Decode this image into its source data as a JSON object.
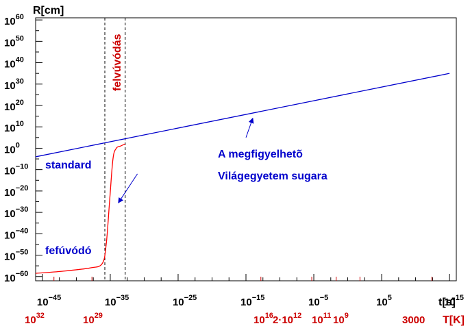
{
  "chart_data": {
    "type": "line",
    "xlabel": "t[s]",
    "ylabel": "R[cm]",
    "secondary_xlabel": "T[K]",
    "x_scale": "log",
    "y_scale": "log",
    "xlim_exp": [
      -46,
      16
    ],
    "ylim_exp": [
      -62,
      61
    ],
    "grid": false,
    "x_ticks": [
      {
        "base": "10",
        "exp": "−45",
        "value_exp": -45
      },
      {
        "base": "10",
        "exp": "−35",
        "value_exp": -35
      },
      {
        "base": "10",
        "exp": "−25",
        "value_exp": -25
      },
      {
        "base": "10",
        "exp": "−15",
        "value_exp": -15
      },
      {
        "base": "10",
        "exp": "−5",
        "value_exp": -5
      },
      {
        "base": "10",
        "exp": "5",
        "value_exp": 5
      },
      {
        "base": "10",
        "exp": "15",
        "value_exp": 15
      }
    ],
    "y_ticks": [
      {
        "base": "10",
        "exp": "−60",
        "value_exp": -60
      },
      {
        "base": "10",
        "exp": "−50",
        "value_exp": -50
      },
      {
        "base": "10",
        "exp": "−40",
        "value_exp": -40
      },
      {
        "base": "10",
        "exp": "−30",
        "value_exp": -30
      },
      {
        "base": "10",
        "exp": "−20",
        "value_exp": -20
      },
      {
        "base": "10",
        "exp": "−10",
        "value_exp": -10
      },
      {
        "base": "10",
        "exp": "0",
        "value_exp": 0
      },
      {
        "base": "10",
        "exp": "10",
        "value_exp": 10
      },
      {
        "base": "10",
        "exp": "20",
        "value_exp": 20
      },
      {
        "base": "10",
        "exp": "30",
        "value_exp": 30
      },
      {
        "base": "10",
        "exp": "40",
        "value_exp": 40
      },
      {
        "base": "10",
        "exp": "50",
        "value_exp": 50
      },
      {
        "base": "10",
        "exp": "60",
        "value_exp": 60
      }
    ],
    "temperature_ticks": [
      {
        "base": "10",
        "exp": "32",
        "t_exp": -43.3,
        "label_x": 36,
        "label_anchor": "start"
      },
      {
        "base": "10",
        "exp": "29",
        "t_exp": -37.7,
        "label_x": 121,
        "label_anchor": "start"
      },
      {
        "base": "10",
        "exp": "16",
        "t_exp": -12.8,
        "label_x": 370,
        "label_anchor": "start"
      },
      {
        "base": "2·10",
        "exp": "12",
        "t_exp": -5.3,
        "label_x": 398,
        "label_anchor": "start"
      },
      {
        "base": "10",
        "exp": "11",
        "t_exp": -1.7,
        "label_x": 455,
        "label_anchor": "start"
      },
      {
        "base": "10",
        "exp": "9",
        "t_exp": 1.8,
        "label_x": 486,
        "label_anchor": "start"
      },
      {
        "base": "3000",
        "exp": "",
        "t_exp": 12.4,
        "label_x": 587,
        "label_anchor": "start"
      }
    ],
    "series": [
      {
        "name": "standard",
        "color": "#0000cc",
        "points_exp": [
          [
            -46,
            -4
          ],
          [
            15,
            35
          ]
        ]
      },
      {
        "name": "fefúvódó",
        "color": "#ff0000",
        "points_exp": [
          [
            -46,
            -58.5
          ],
          [
            -42,
            -57.5
          ],
          [
            -38,
            -56
          ],
          [
            -36.2,
            -54
          ],
          [
            -35.6,
            -45
          ],
          [
            -35.1,
            -25
          ],
          [
            -34.6,
            -5
          ],
          [
            -34.1,
            0
          ],
          [
            -33.5,
            1
          ],
          [
            -32.8,
            2
          ]
        ]
      }
    ],
    "vlines_exp": [
      -35.8,
      -32.8
    ],
    "vline_style": "dashed",
    "inflation_label": "felvúvódás",
    "annotations": {
      "standard_label": "standard",
      "inflationary_label": "fefúvódó",
      "observable_line1": "A megfigyelhetõ",
      "observable_line2": "Világegyetem sugara"
    },
    "annotation_arrows": [
      {
        "from": [
          -15,
          5
        ],
        "to_exp": [
          -14,
          14
        ]
      },
      {
        "from": [
          -31,
          -12
        ],
        "to_exp": [
          -33.8,
          -25.5
        ]
      }
    ],
    "colors": {
      "axis": "#000000",
      "standard": "#0000cc",
      "inflationary": "#ff0000",
      "temperature": "#cc0000"
    }
  }
}
